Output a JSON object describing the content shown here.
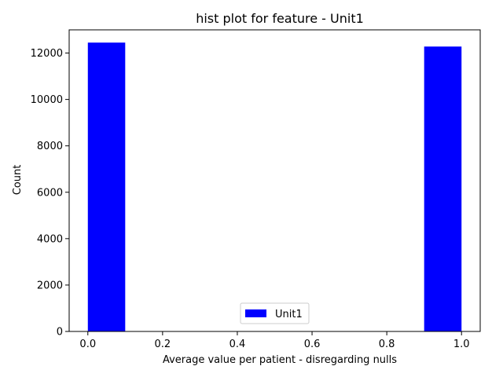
{
  "chart_data": {
    "type": "bar",
    "title": "hist plot for feature -  Unit1",
    "xlabel": "Average value per patient - disregarding nulls",
    "ylabel": "Count",
    "xlim": [
      -0.05,
      1.05
    ],
    "ylim": [
      0,
      13000
    ],
    "xticks": [
      0.0,
      0.2,
      0.4,
      0.6,
      0.8,
      1.0
    ],
    "xtick_labels": [
      "0.0",
      "0.2",
      "0.4",
      "0.6",
      "0.8",
      "1.0"
    ],
    "yticks": [
      0,
      2000,
      4000,
      6000,
      8000,
      10000,
      12000
    ],
    "ytick_labels": [
      "0",
      "2000",
      "4000",
      "6000",
      "8000",
      "10000",
      "12000"
    ],
    "grid": false,
    "legend": {
      "position": "lower-center",
      "entries": [
        "Unit1"
      ]
    },
    "series": [
      {
        "name": "Unit1",
        "color": "#0000ff",
        "bins": [
          {
            "x0": 0.0,
            "x1": 0.1,
            "count": 12450
          },
          {
            "x0": 0.9,
            "x1": 1.0,
            "count": 12280
          }
        ]
      }
    ]
  }
}
